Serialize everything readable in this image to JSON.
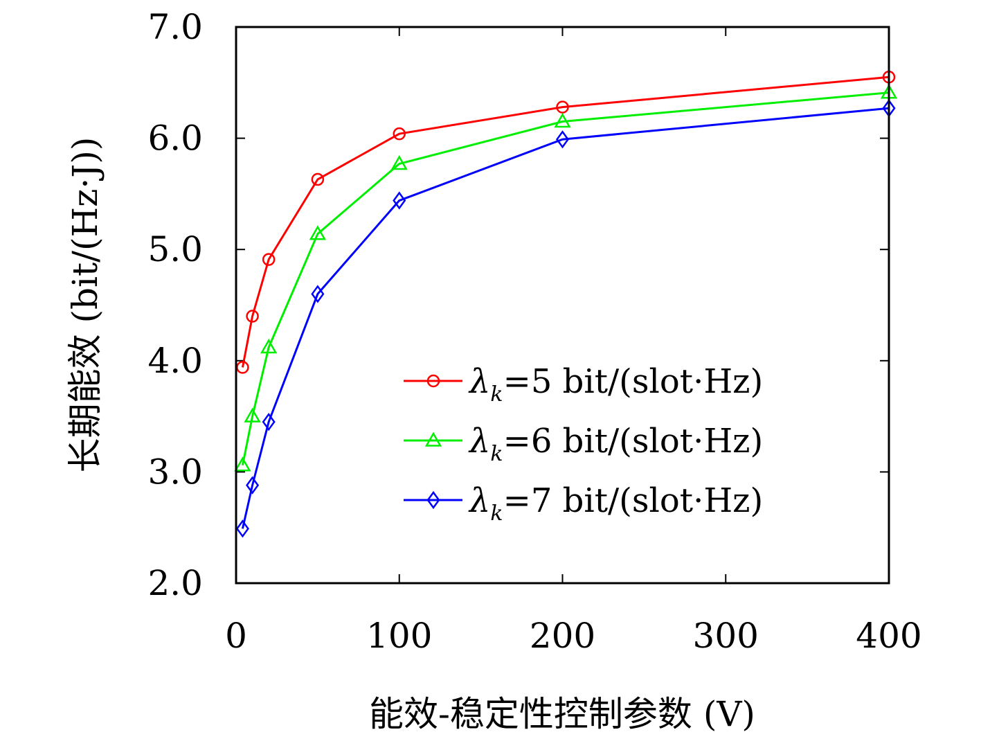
{
  "chart_data": {
    "type": "line",
    "title": "",
    "xlabel": "能效-稳定性控制参数 (V)",
    "ylabel": "长期能效 (bit/(Hz·J))",
    "xlim": [
      0,
      400
    ],
    "ylim": [
      2.0,
      7.0
    ],
    "xticks": [
      0,
      100,
      200,
      300,
      400
    ],
    "xtick_labels": [
      "0",
      "100",
      "200",
      "300",
      "400"
    ],
    "yticks": [
      2.0,
      3.0,
      4.0,
      5.0,
      6.0,
      7.0
    ],
    "ytick_labels": [
      "2.0",
      "3.0",
      "4.0",
      "5.0",
      "6.0",
      "7.0"
    ],
    "grid": false,
    "legend_position": "right-center",
    "x": [
      4,
      10,
      20,
      50,
      100,
      200,
      400
    ],
    "series": [
      {
        "name": "λk=5 bit/(slot·Hz)",
        "legend_symbol": "λ",
        "legend_sub": "k",
        "legend_rest": "=5 bit/(slot·Hz)",
        "color": "#ff0000",
        "marker": "circle",
        "values": [
          3.94,
          4.4,
          4.91,
          5.63,
          6.04,
          6.28,
          6.55
        ]
      },
      {
        "name": "λk=6 bit/(slot·Hz)",
        "legend_symbol": "λ",
        "legend_sub": "k",
        "legend_rest": "=6 bit/(slot·Hz)",
        "color": "#00ee00",
        "marker": "triangle",
        "values": [
          3.06,
          3.5,
          4.12,
          5.14,
          5.77,
          6.15,
          6.41
        ]
      },
      {
        "name": "λk=7 bit/(slot·Hz)",
        "legend_symbol": "λ",
        "legend_sub": "k",
        "legend_rest": "=7 bit/(slot·Hz)",
        "color": "#0000ff",
        "marker": "diamond",
        "values": [
          2.49,
          2.88,
          3.45,
          4.6,
          5.44,
          5.99,
          6.27
        ]
      }
    ]
  }
}
